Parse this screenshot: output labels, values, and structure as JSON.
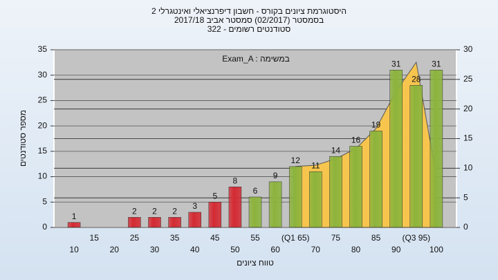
{
  "chart_data": {
    "type": "bar",
    "title": [
      "היסטוגרמת ציונים בקורס - חשבון דיפרנציאלי ואינטגרלי 2",
      "בסמסטר  (02/2017)  סמסטר אביב 2017/18",
      "סטודנטים רשומים - 322"
    ],
    "annotation": "Exam_A : במשימה",
    "x_label": "טווח ציונים",
    "y_label": "מספר סטודנטים",
    "categories": [
      "10",
      "15",
      "20",
      "25",
      "30",
      "35",
      "40",
      "45",
      "50",
      "55",
      "60",
      "(Q1 65)",
      "70",
      "75",
      "80",
      "85",
      "90",
      "(Q3 95)",
      "100"
    ],
    "values": [
      1,
      null,
      null,
      2,
      2,
      2,
      3,
      5,
      8,
      6,
      9,
      12,
      11,
      14,
      16,
      19,
      31,
      28,
      31
    ],
    "colors": [
      "#d42a33",
      null,
      null,
      "#d42a33",
      "#d42a33",
      "#d42a33",
      "#d42a33",
      "#d42a33",
      "#d42a33",
      "#8cb43c",
      "#8cb43c",
      "#8cb43c",
      "#8cb43c",
      "#8cb43c",
      "#8cb43c",
      "#8cb43c",
      "#8cb43c",
      "#8cb43c",
      "#8cb43c"
    ],
    "area": {
      "color": "#f7c54e",
      "axis": "y2",
      "values": [
        null,
        null,
        null,
        null,
        null,
        null,
        null,
        null,
        null,
        null,
        null,
        10.3,
        10.5,
        11.6,
        13.3,
        16.7,
        23,
        27.9,
        8.6
      ]
    },
    "ylim": [
      0,
      35
    ],
    "yticks": [
      0,
      5,
      10,
      15,
      20,
      25,
      30,
      35
    ],
    "y2lim": [
      0,
      30
    ],
    "y2ticks": [
      0,
      5,
      10,
      15,
      20,
      25,
      30
    ],
    "grid": true
  }
}
